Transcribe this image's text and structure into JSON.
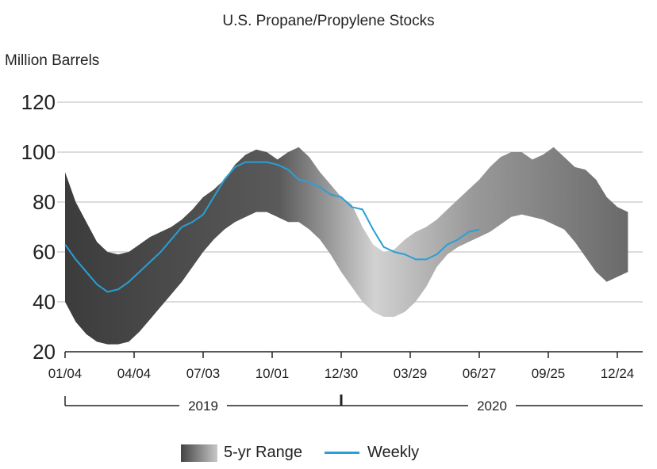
{
  "title": "U.S. Propane/Propylene Stocks",
  "units": "Million Barrels",
  "legend": {
    "range_label": "5-yr Range",
    "weekly_label": "Weekly"
  },
  "colors": {
    "weekly": "#2a9fd6",
    "grid": "#c8c8c8",
    "axis": "#222222",
    "range_dark": "#444444",
    "range_light": "#cfcfcf"
  },
  "chart_data": {
    "type": "area",
    "title": "U.S. Propane/Propylene Stocks",
    "ylabel": "Million Barrels",
    "ylim": [
      20,
      120
    ],
    "yticks": [
      20,
      40,
      60,
      80,
      100,
      120
    ],
    "xlim": [
      0,
      104
    ],
    "xticks": [
      {
        "x": 0,
        "label": "01/04"
      },
      {
        "x": 13,
        "label": "04/04"
      },
      {
        "x": 26,
        "label": "07/03"
      },
      {
        "x": 39,
        "label": "10/01"
      },
      {
        "x": 52,
        "label": "12/30"
      },
      {
        "x": 65,
        "label": "03/29"
      },
      {
        "x": 78,
        "label": "06/27"
      },
      {
        "x": 91,
        "label": "09/25"
      },
      {
        "x": 104,
        "label": "12/24"
      }
    ],
    "year_labels": [
      {
        "label": "2019",
        "start": 0,
        "end": 52
      },
      {
        "label": "2020",
        "start": 52,
        "end": 109
      }
    ],
    "grid": true,
    "legend_position": "bottom",
    "series": [
      {
        "name": "5-yr Range",
        "type": "range",
        "x": [
          0,
          2,
          4,
          6,
          8,
          10,
          12,
          14,
          16,
          18,
          20,
          22,
          24,
          26,
          28,
          30,
          32,
          34,
          36,
          38,
          40,
          42,
          44,
          46,
          48,
          50,
          52,
          54,
          56,
          58,
          60,
          62,
          64,
          66,
          68,
          70,
          72,
          74,
          76,
          78,
          80,
          82,
          84,
          86,
          88,
          90,
          92,
          94,
          96,
          98,
          100,
          102,
          104,
          106
        ],
        "upper": [
          92,
          80,
          72,
          64,
          60,
          59,
          60,
          63,
          66,
          68,
          70,
          73,
          77,
          82,
          85,
          89,
          95,
          99,
          101,
          100,
          97,
          100,
          102,
          98,
          92,
          87,
          82,
          79,
          70,
          63,
          60,
          61,
          65,
          68,
          70,
          73,
          77,
          81,
          85,
          89,
          94,
          98,
          100,
          100,
          97,
          99,
          102,
          98,
          94,
          93,
          89,
          82,
          78,
          76
        ],
        "lower": [
          40,
          32,
          27,
          24,
          23,
          23,
          24,
          28,
          33,
          38,
          43,
          48,
          54,
          60,
          65,
          69,
          72,
          74,
          76,
          76,
          74,
          72,
          72,
          69,
          65,
          59,
          52,
          46,
          40,
          36,
          34,
          34,
          36,
          40,
          46,
          54,
          59,
          62,
          64,
          66,
          68,
          71,
          74,
          75,
          74,
          73,
          71,
          69,
          64,
          58,
          52,
          48,
          50,
          52
        ]
      },
      {
        "name": "Weekly",
        "type": "line",
        "x": [
          0,
          2,
          4,
          6,
          8,
          10,
          12,
          14,
          16,
          18,
          20,
          22,
          24,
          26,
          28,
          30,
          32,
          34,
          36,
          38,
          40,
          42,
          44,
          46,
          48,
          50,
          52,
          54,
          56,
          58,
          60,
          62,
          64,
          66,
          68,
          70,
          72,
          74,
          76,
          78
        ],
        "values": [
          63,
          57,
          52,
          47,
          44,
          45,
          48,
          52,
          56,
          60,
          65,
          70,
          72,
          75,
          82,
          89,
          94,
          96,
          96,
          96,
          95,
          93,
          89,
          88,
          86,
          83,
          82,
          78,
          77,
          69,
          62,
          60,
          59,
          57,
          57,
          59,
          63,
          65,
          68,
          69
        ]
      }
    ]
  }
}
